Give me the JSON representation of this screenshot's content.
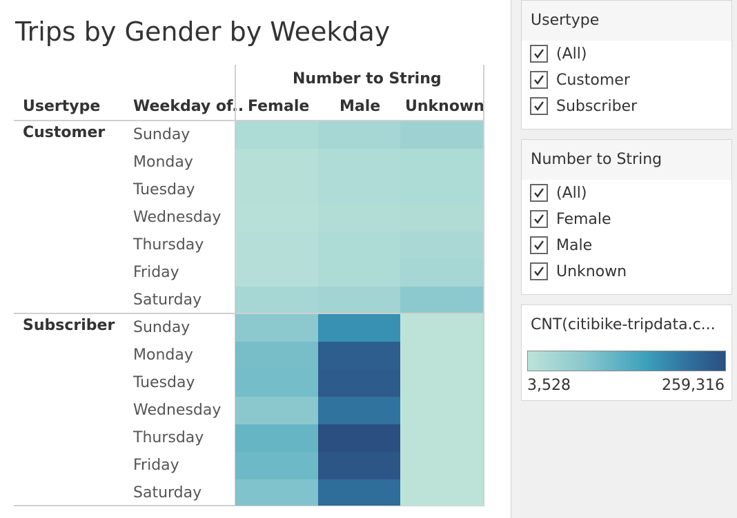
{
  "chart_data": {
    "type": "heatmap",
    "title": "Trips by Gender by Weekday",
    "column_group_header": "Number to String",
    "row_headers": [
      "Usertype",
      "Weekday of.."
    ],
    "columns": [
      "Female",
      "Male",
      "Unknown"
    ],
    "groups": [
      {
        "name": "Customer",
        "rows": [
          "Sunday",
          "Monday",
          "Tuesday",
          "Wednesday",
          "Thursday",
          "Friday",
          "Saturday"
        ],
        "values": [
          [
            22000,
            30000,
            40000
          ],
          [
            12000,
            20000,
            22000
          ],
          [
            12000,
            20000,
            22000
          ],
          [
            10000,
            16000,
            18000
          ],
          [
            14000,
            22000,
            26000
          ],
          [
            14000,
            22000,
            30000
          ],
          [
            30000,
            36000,
            60000
          ]
        ]
      },
      {
        "name": "Subscriber",
        "rows": [
          "Sunday",
          "Monday",
          "Tuesday",
          "Wednesday",
          "Thursday",
          "Friday",
          "Saturday"
        ],
        "values": [
          [
            60000,
            150000,
            3528
          ],
          [
            80000,
            230000,
            3528
          ],
          [
            82000,
            235000,
            3528
          ],
          [
            62000,
            190000,
            3528
          ],
          [
            95000,
            259316,
            3528
          ],
          [
            88000,
            245000,
            3528
          ],
          [
            72000,
            200000,
            3528
          ]
        ]
      }
    ],
    "color_scale": {
      "min": 3528,
      "max": 259316,
      "colors": [
        "#bde3d9",
        "#86c6cd",
        "#3c9fbb",
        "#2f6f9c",
        "#2b4f80"
      ]
    }
  },
  "sidebar": {
    "usertype_filter": {
      "title": "Usertype",
      "options": [
        "(All)",
        "Customer",
        "Subscriber"
      ]
    },
    "gender_filter": {
      "title": "Number to String",
      "options": [
        "(All)",
        "Female",
        "Male",
        "Unknown"
      ]
    },
    "color_legend": {
      "title": "CNT(citibike-tripdata.c...",
      "min_label": "3,528",
      "max_label": "259,316"
    }
  }
}
